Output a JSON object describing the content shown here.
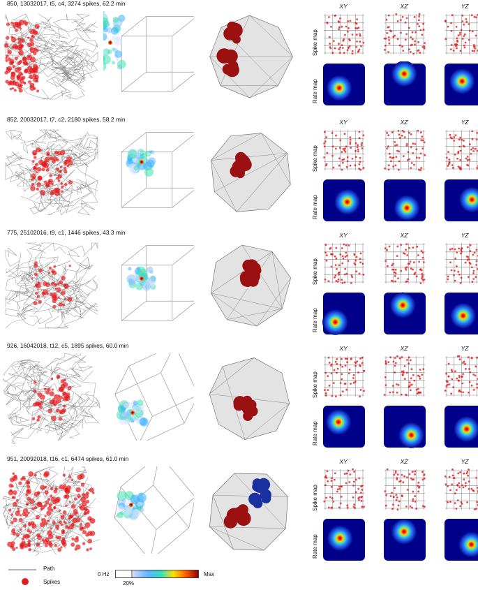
{
  "rows": [
    {
      "title": "850, 13032017, t5, c4, 3274 spikes, 62.2 min"
    },
    {
      "title": "852, 20032017, t7, c2, 2180 spikes, 58.2 min"
    },
    {
      "title": "775, 25102016, t9, c1, 1446 spikes, 43.3 min"
    },
    {
      "title": "926, 16042018, t12, c5, 1895 spikes, 60.0 min"
    },
    {
      "title": "951, 20092018, t16, c1, 6474 spikes, 61.0 min"
    }
  ],
  "planes": [
    "XY",
    "XZ",
    "YZ"
  ],
  "side_labels": {
    "spike": "Spike map",
    "rate": "Rate map"
  },
  "legend": {
    "path": "Path",
    "spikes": "Spikes",
    "min": "0 Hz",
    "max": "Max",
    "threshold": "20%"
  },
  "colors": {
    "path": "#8a8a8a",
    "spike": "#e41a1c",
    "rate_bg": "#00008b",
    "hull": "#b8b8b8",
    "blob": "#9b1111",
    "blob_blue": "#1a2fa0"
  }
}
